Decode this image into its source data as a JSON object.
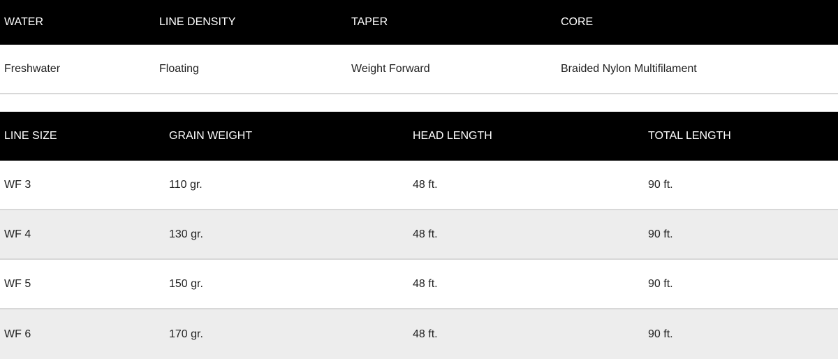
{
  "specs": {
    "headers": [
      "WATER",
      "LINE DENSITY",
      "TAPER",
      "CORE"
    ],
    "values": [
      "Freshwater",
      "Floating",
      "Weight Forward",
      "Braided Nylon Multifilament"
    ]
  },
  "sizes": {
    "headers": [
      "LINE SIZE",
      "GRAIN WEIGHT",
      "HEAD LENGTH",
      "TOTAL LENGTH"
    ],
    "rows": [
      [
        "WF 3",
        "110 gr.",
        "48 ft.",
        "90 ft."
      ],
      [
        "WF 4",
        "130 gr.",
        "48 ft.",
        "90 ft."
      ],
      [
        "WF 5",
        "150 gr.",
        "48 ft.",
        "90 ft."
      ],
      [
        "WF 6",
        "170 gr.",
        "48 ft.",
        "90 ft."
      ]
    ]
  },
  "colors": {
    "header_bg": "#000000",
    "header_text": "#ffffff",
    "alt_row": "#ededed"
  }
}
